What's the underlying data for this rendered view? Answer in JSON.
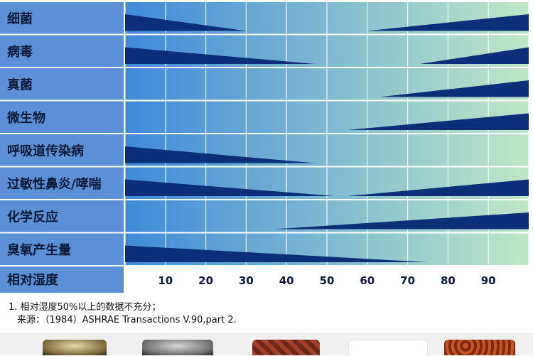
{
  "chart_data": {
    "type": "bar",
    "title": "",
    "xlabel": "相对湿度",
    "ylabel": "",
    "xlim": [
      0,
      100
    ],
    "x_ticks": [
      10,
      20,
      30,
      40,
      50,
      60,
      70,
      80,
      90
    ],
    "grid": true,
    "series": [
      {
        "label": "细菌",
        "low_risk_end": 30,
        "high_risk_start": 60
      },
      {
        "label": "病毒",
        "low_risk_end": 47,
        "high_risk_start": 73
      },
      {
        "label": "真菌",
        "low_risk_end": null,
        "high_risk_start": 63
      },
      {
        "label": "微生物",
        "low_risk_end": null,
        "high_risk_start": 55
      },
      {
        "label": "呼吸道传染病",
        "low_risk_end": 47,
        "high_risk_start": null
      },
      {
        "label": "过敏性鼻炎/哮喘",
        "low_risk_end": 52,
        "high_risk_start": 55
      },
      {
        "label": "化学反应",
        "low_risk_end": null,
        "high_risk_start": 37
      },
      {
        "label": "臭氧产生量",
        "low_risk_end": 75,
        "high_risk_start": null
      }
    ],
    "colors": {
      "label_column": "#5b8fd6",
      "wedge": "#0d2f7a",
      "grid_start": "#3f8ad9",
      "grid_end": "#bfe8c7"
    }
  },
  "notes": {
    "line1": "1. 相对湿度50%以上的数据不充分；",
    "line2": "来源：（1984）ASHRAE  Transactions V.90,part 2."
  },
  "photos": [
    "bacteria-photo",
    "virus-photo",
    "fungi-photo",
    "microbe-photo",
    "mite-photo"
  ]
}
